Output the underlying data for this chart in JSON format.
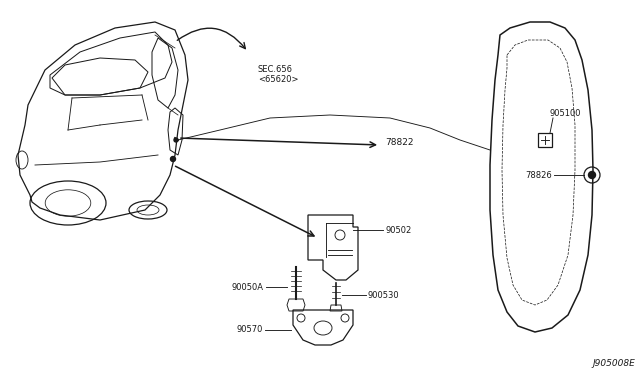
{
  "bg_color": "#ffffff",
  "line_color": "#1a1a1a",
  "label_color": "#1a1a1a",
  "diagram_id": "J905008E",
  "sec_label": "SEC.656\n<65620>",
  "figsize": [
    6.4,
    3.72
  ],
  "dpi": 100
}
